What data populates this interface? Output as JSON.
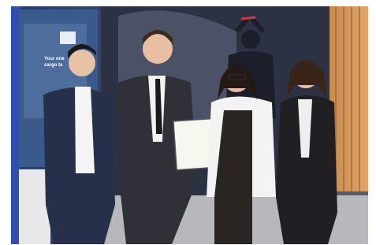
{
  "banner": {
    "lines": [
      "Your one",
      "cargo ta"
    ]
  }
}
